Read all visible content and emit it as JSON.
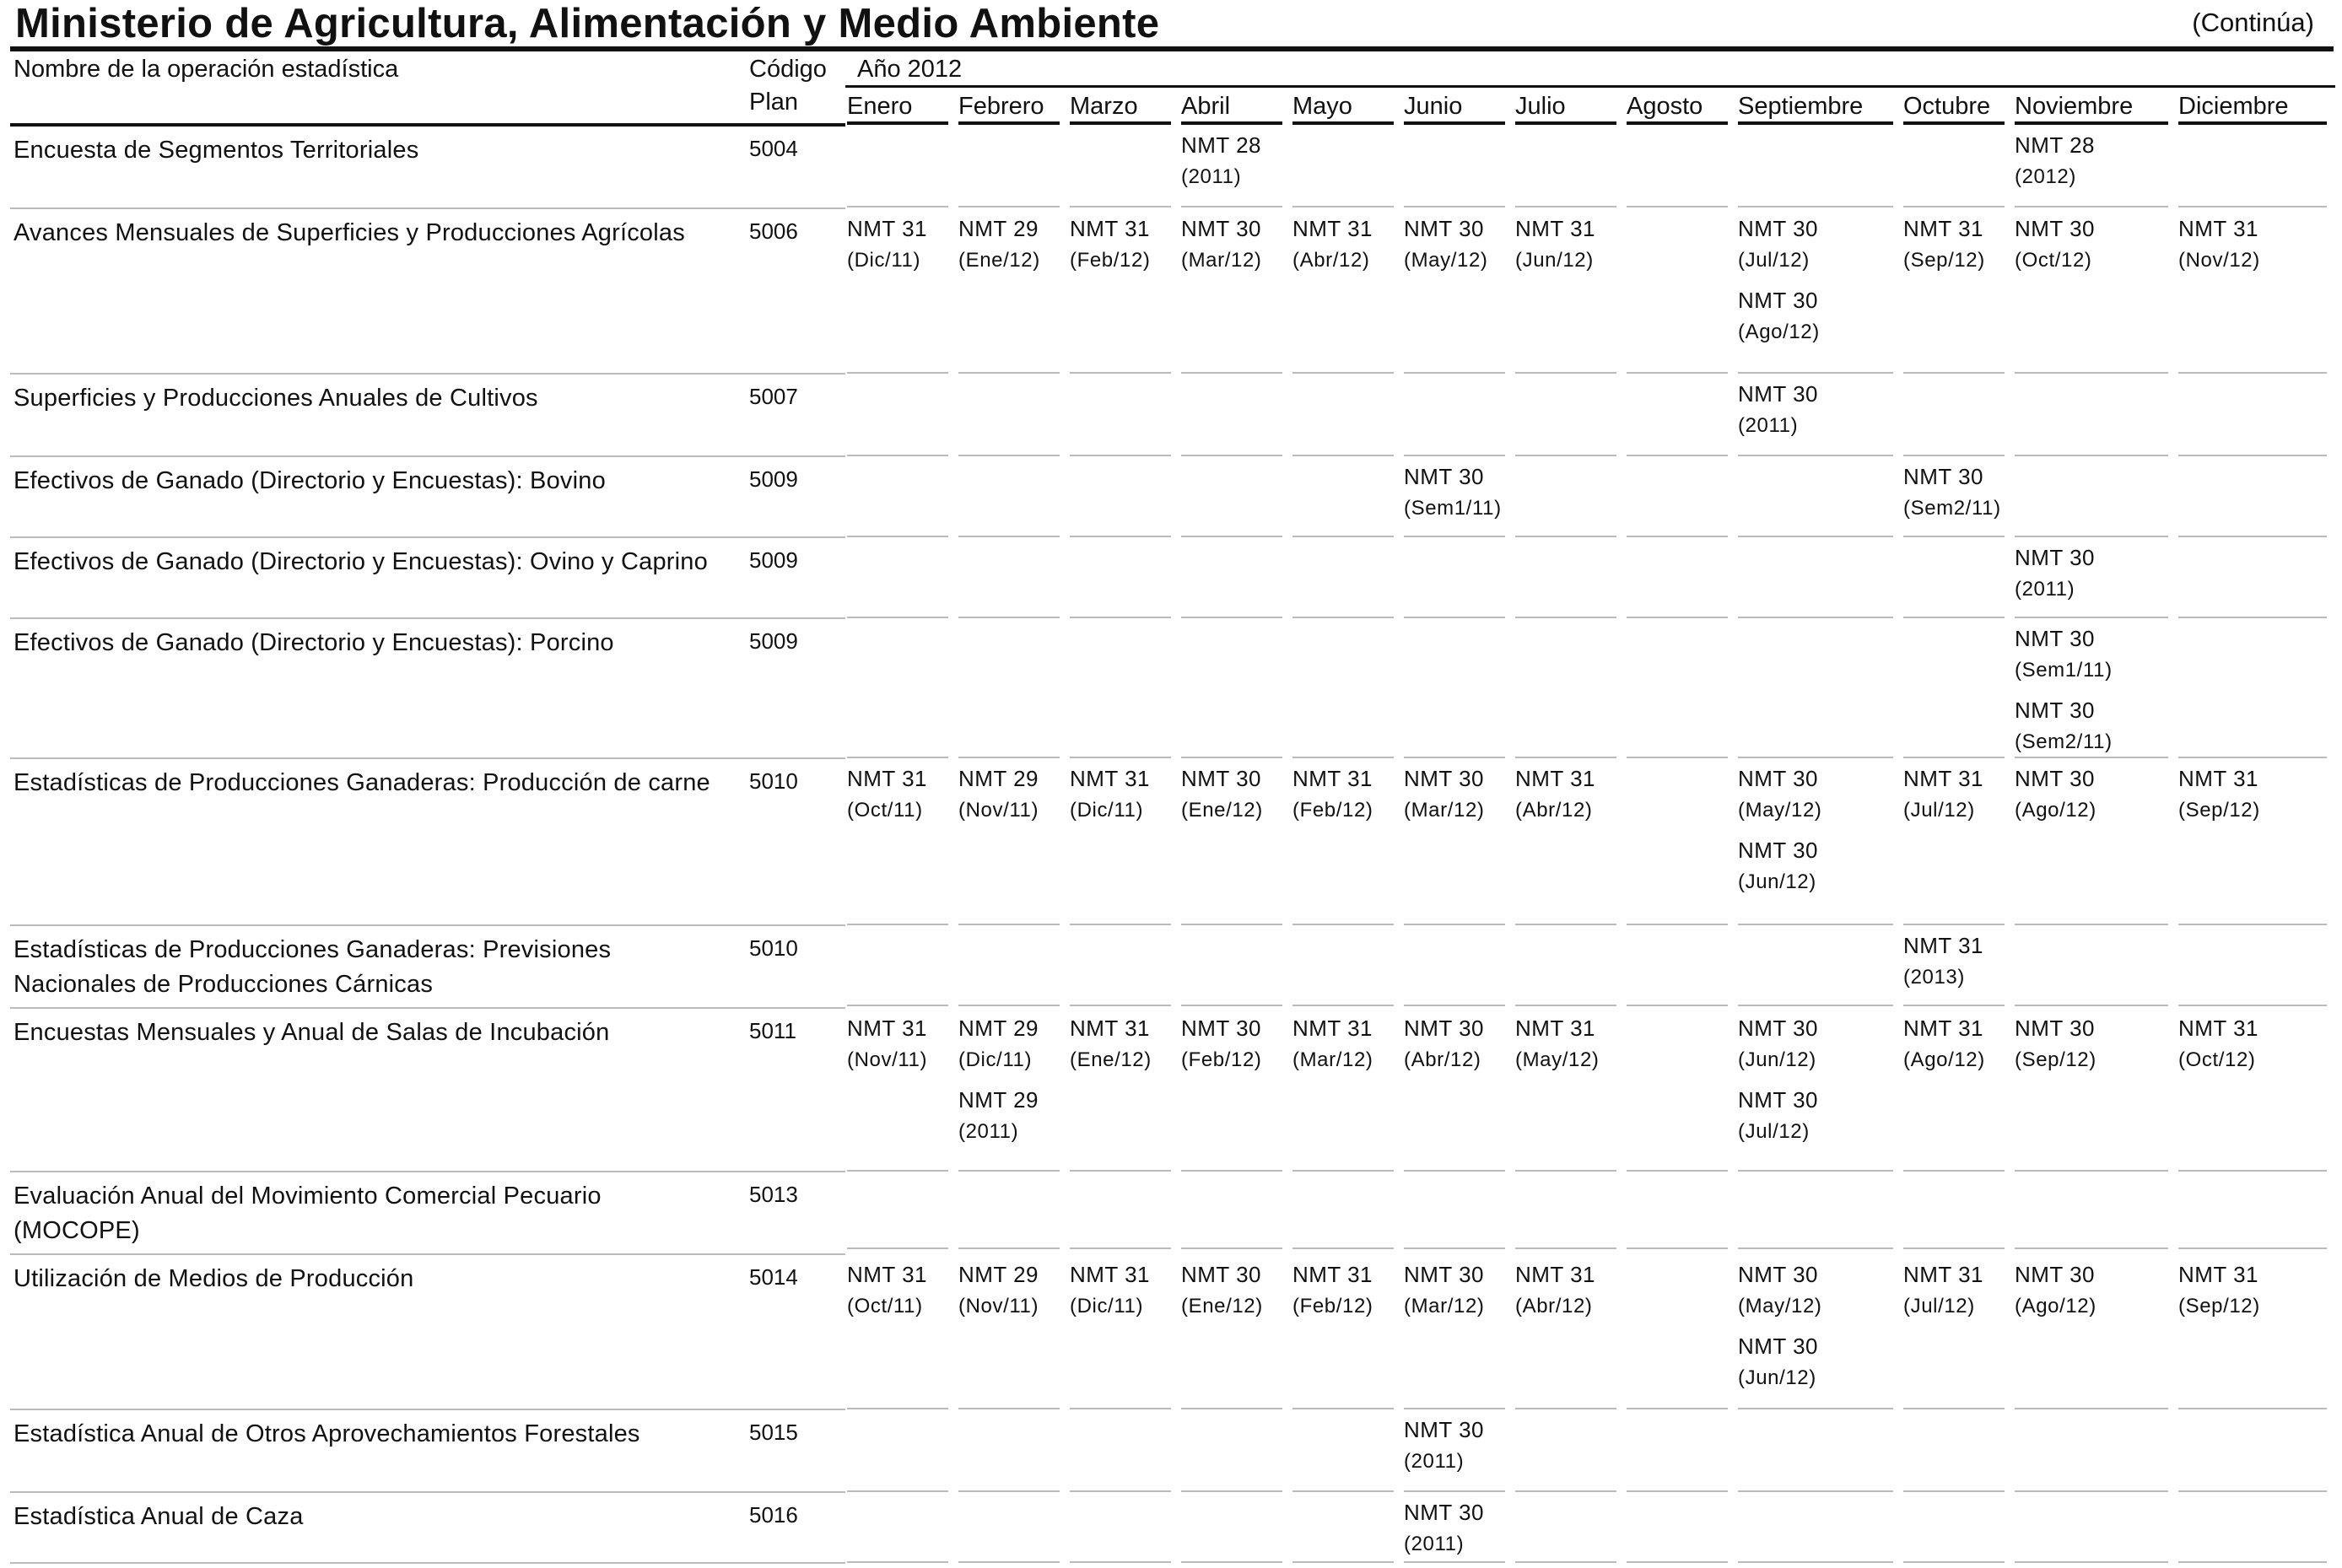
{
  "header": {
    "title": "Ministerio de Agricultura, Alimentación y Medio Ambiente",
    "continua": "(Continúa)"
  },
  "table": {
    "col_name": "Nombre de la operación estadística",
    "col_code_1": "Código",
    "col_code_2": "Plan",
    "year": "Año 2012",
    "months": [
      "Enero",
      "Febrero",
      "Marzo",
      "Abril",
      "Mayo",
      "Junio",
      "Julio",
      "Agosto",
      "Septiembre",
      "Octubre",
      "Noviembre",
      "Diciembre"
    ],
    "rows": [
      {
        "name": "Encuesta de Segmentos Territoriales",
        "code": "5004",
        "cells": [
          [],
          [],
          [],
          [
            [
              "NMT 28",
              "(2011)"
            ]
          ],
          [],
          [],
          [],
          [],
          [],
          [],
          [
            [
              "NMT 28",
              "(2012)"
            ]
          ],
          []
        ]
      },
      {
        "name": "Avances Mensuales de Superficies y Producciones Agrícolas",
        "code": "5006",
        "cells": [
          [
            [
              "NMT 31",
              "(Dic/11)"
            ]
          ],
          [
            [
              "NMT 29",
              "(Ene/12)"
            ]
          ],
          [
            [
              "NMT 31",
              "(Feb/12)"
            ]
          ],
          [
            [
              "NMT 30",
              "(Mar/12)"
            ]
          ],
          [
            [
              "NMT 31",
              "(Abr/12)"
            ]
          ],
          [
            [
              "NMT 30",
              "(May/12)"
            ]
          ],
          [
            [
              "NMT 31",
              "(Jun/12)"
            ]
          ],
          [],
          [
            [
              "NMT 30",
              "(Jul/12)"
            ],
            [
              "NMT 30",
              "(Ago/12)"
            ]
          ],
          [
            [
              "NMT 31",
              "(Sep/12)"
            ]
          ],
          [
            [
              "NMT 30",
              "(Oct/12)"
            ]
          ],
          [
            [
              "NMT 31",
              "(Nov/12)"
            ]
          ]
        ]
      },
      {
        "name": "Superficies y Producciones Anuales de Cultivos",
        "code": "5007",
        "cells": [
          [],
          [],
          [],
          [],
          [],
          [],
          [],
          [],
          [
            [
              "NMT 30",
              "(2011)"
            ]
          ],
          [],
          [],
          []
        ]
      },
      {
        "name": "Efectivos de Ganado (Directorio y Encuestas): Bovino",
        "code": "5009",
        "cells": [
          [],
          [],
          [],
          [],
          [],
          [
            [
              "NMT 30",
              "(Sem1/11)"
            ]
          ],
          [],
          [],
          [],
          [
            [
              "NMT 30",
              "(Sem2/11)"
            ]
          ],
          [],
          []
        ]
      },
      {
        "name": "Efectivos de Ganado (Directorio y Encuestas): Ovino y Caprino",
        "code": "5009",
        "cells": [
          [],
          [],
          [],
          [],
          [],
          [],
          [],
          [],
          [],
          [],
          [
            [
              "NMT 30",
              "(2011)"
            ]
          ],
          []
        ]
      },
      {
        "name": "Efectivos de Ganado (Directorio y Encuestas): Porcino",
        "code": "5009",
        "cells": [
          [],
          [],
          [],
          [],
          [],
          [],
          [],
          [],
          [],
          [],
          [
            [
              "NMT 30",
              "(Sem1/11)"
            ],
            [
              "NMT 30",
              "(Sem2/11)"
            ]
          ],
          []
        ]
      },
      {
        "name": "Estadísticas de Producciones Ganaderas: Producción de carne",
        "code": "5010",
        "cells": [
          [
            [
              "NMT 31",
              "(Oct/11)"
            ]
          ],
          [
            [
              "NMT 29",
              "(Nov/11)"
            ]
          ],
          [
            [
              "NMT 31",
              "(Dic/11)"
            ]
          ],
          [
            [
              "NMT 30",
              "(Ene/12)"
            ]
          ],
          [
            [
              "NMT 31",
              "(Feb/12)"
            ]
          ],
          [
            [
              "NMT 30",
              "(Mar/12)"
            ]
          ],
          [
            [
              "NMT 31",
              "(Abr/12)"
            ]
          ],
          [],
          [
            [
              "NMT 30",
              "(May/12)"
            ],
            [
              "NMT 30",
              "(Jun/12)"
            ]
          ],
          [
            [
              "NMT 31",
              "(Jul/12)"
            ]
          ],
          [
            [
              "NMT 30",
              "(Ago/12)"
            ]
          ],
          [
            [
              "NMT 31",
              "(Sep/12)"
            ]
          ]
        ]
      },
      {
        "name": "Estadísticas de Producciones Ganaderas: Previsiones Nacionales de Producciones Cárnicas",
        "code": "5010",
        "cells": [
          [],
          [],
          [],
          [],
          [],
          [],
          [],
          [],
          [],
          [
            [
              "NMT 31",
              "(2013)"
            ]
          ],
          [],
          []
        ]
      },
      {
        "name": "Encuestas Mensuales y Anual de Salas de Incubación",
        "code": "5011",
        "cells": [
          [
            [
              "NMT 31",
              "(Nov/11)"
            ]
          ],
          [
            [
              "NMT 29",
              "(Dic/11)"
            ],
            [
              "NMT 29",
              "(2011)"
            ]
          ],
          [
            [
              "NMT 31",
              "(Ene/12)"
            ]
          ],
          [
            [
              "NMT 30",
              "(Feb/12)"
            ]
          ],
          [
            [
              "NMT 31",
              "(Mar/12)"
            ]
          ],
          [
            [
              "NMT 30",
              "(Abr/12)"
            ]
          ],
          [
            [
              "NMT 31",
              "(May/12)"
            ]
          ],
          [],
          [
            [
              "NMT 30",
              "(Jun/12)"
            ],
            [
              "NMT 30",
              "(Jul/12)"
            ]
          ],
          [
            [
              "NMT 31",
              "(Ago/12)"
            ]
          ],
          [
            [
              "NMT 30",
              "(Sep/12)"
            ]
          ],
          [
            [
              "NMT 31",
              "(Oct/12)"
            ]
          ]
        ]
      },
      {
        "name": "Evaluación Anual del Movimiento Comercial Pecuario (MOCOPE)",
        "code": "5013",
        "cells": [
          [],
          [],
          [],
          [],
          [],
          [],
          [],
          [],
          [],
          [],
          [],
          []
        ]
      },
      {
        "name": "Utilización de Medios de Producción",
        "code": "5014",
        "cells": [
          [
            [
              "NMT 31",
              "(Oct/11)"
            ]
          ],
          [
            [
              "NMT 29",
              "(Nov/11)"
            ]
          ],
          [
            [
              "NMT 31",
              "(Dic/11)"
            ]
          ],
          [
            [
              "NMT 30",
              "(Ene/12)"
            ]
          ],
          [
            [
              "NMT 31",
              "(Feb/12)"
            ]
          ],
          [
            [
              "NMT 30",
              "(Mar/12)"
            ]
          ],
          [
            [
              "NMT 31",
              "(Abr/12)"
            ]
          ],
          [],
          [
            [
              "NMT 30",
              "(May/12)"
            ],
            [
              "NMT 30",
              "(Jun/12)"
            ]
          ],
          [
            [
              "NMT 31",
              "(Jul/12)"
            ]
          ],
          [
            [
              "NMT 30",
              "(Ago/12)"
            ]
          ],
          [
            [
              "NMT 31",
              "(Sep/12)"
            ]
          ]
        ]
      },
      {
        "name": "Estadística Anual de Otros Aprovechamientos Forestales",
        "code": "5015",
        "cells": [
          [],
          [],
          [],
          [],
          [],
          [
            [
              "NMT 30",
              "(2011)"
            ]
          ],
          [],
          [],
          [],
          [],
          [],
          []
        ]
      },
      {
        "name": "Estadística Anual de Caza",
        "code": "5016",
        "cells": [
          [],
          [],
          [],
          [],
          [],
          [
            [
              "NMT 30",
              "(2011)"
            ]
          ],
          [],
          [],
          [],
          [],
          [],
          []
        ]
      }
    ]
  }
}
